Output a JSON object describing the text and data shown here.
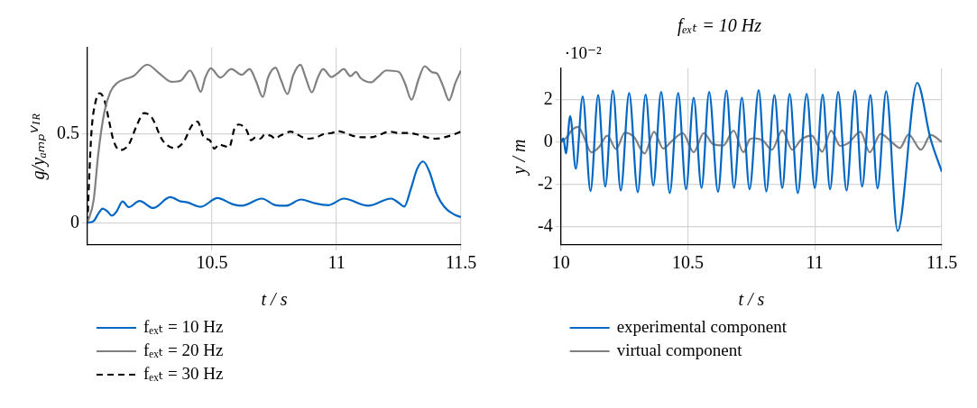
{
  "chart_data": [
    {
      "type": "line",
      "xlabel": "t / s",
      "ylabel": "g/yₐₘₚⱽᴵᴿ",
      "xlim": [
        10,
        11.5
      ],
      "xticks": [
        10.5,
        11,
        11.5
      ],
      "ylim": [
        -0.125,
        0.985
      ],
      "yticks": [
        0,
        0.5
      ],
      "grid": true,
      "legend": "bottom",
      "series": [
        {
          "name": "fₑₓₜ = 10 Hz",
          "color": "#0066c4",
          "x": [
            10.0,
            10.025,
            10.043,
            10.061,
            10.08,
            10.098,
            10.117,
            10.141,
            10.166,
            10.209,
            10.264,
            10.332,
            10.375,
            10.4,
            10.455,
            10.522,
            10.584,
            10.62,
            10.7,
            10.755,
            10.797,
            10.858,
            10.907,
            10.968,
            11.029,
            11.127,
            11.219,
            11.25,
            11.272,
            11.299,
            11.324,
            11.348,
            11.373,
            11.403,
            11.434,
            11.471,
            11.5
          ],
          "values": [
            0,
            0.01,
            0.05,
            0.08,
            0.064,
            0.04,
            0.064,
            0.12,
            0.088,
            0.123,
            0.083,
            0.144,
            0.12,
            0.115,
            0.09,
            0.139,
            0.104,
            0.096,
            0.136,
            0.099,
            0.096,
            0.131,
            0.112,
            0.099,
            0.136,
            0.096,
            0.136,
            0.112,
            0.091,
            0.192,
            0.304,
            0.345,
            0.288,
            0.16,
            0.088,
            0.048,
            0.032
          ]
        },
        {
          "name": "fₑₓₜ = 20 Hz",
          "color": "#808080",
          "x": [
            10.0,
            10.025,
            10.043,
            10.068,
            10.092,
            10.117,
            10.154,
            10.184,
            10.24,
            10.289,
            10.338,
            10.375,
            10.412,
            10.43,
            10.455,
            10.473,
            10.495,
            10.534,
            10.577,
            10.62,
            10.651,
            10.676,
            10.704,
            10.725,
            10.755,
            10.778,
            10.803,
            10.827,
            10.855,
            10.876,
            10.901,
            10.925,
            10.946,
            10.98,
            11.005,
            11.029,
            11.056,
            11.078,
            11.097,
            11.14,
            11.164,
            11.201,
            11.25,
            11.275,
            11.301,
            11.33,
            11.354,
            11.385,
            11.403,
            11.428,
            11.452,
            11.477,
            11.5
          ],
          "values": [
            0,
            0.13,
            0.385,
            0.625,
            0.737,
            0.785,
            0.81,
            0.825,
            0.89,
            0.84,
            0.793,
            0.8,
            0.857,
            0.817,
            0.737,
            0.817,
            0.869,
            0.817,
            0.865,
            0.833,
            0.865,
            0.8,
            0.708,
            0.817,
            0.873,
            0.8,
            0.724,
            0.833,
            0.889,
            0.817,
            0.734,
            0.817,
            0.865,
            0.82,
            0.841,
            0.865,
            0.825,
            0.849,
            0.814,
            0.79,
            0.817,
            0.857,
            0.849,
            0.785,
            0.692,
            0.809,
            0.881,
            0.846,
            0.841,
            0.769,
            0.689,
            0.785,
            0.857
          ]
        },
        {
          "name": "fₑₓₜ = 30 Hz",
          "color": "#000000",
          "line_style": "dashed",
          "x": [
            10.0,
            10.006,
            10.016,
            10.031,
            10.049,
            10.068,
            10.086,
            10.104,
            10.129,
            10.166,
            10.197,
            10.227,
            10.258,
            10.301,
            10.35,
            10.387,
            10.418,
            10.442,
            10.467,
            10.491,
            10.51,
            10.528,
            10.547,
            10.569,
            10.59,
            10.608,
            10.639,
            10.657,
            10.676,
            10.694,
            10.712,
            10.737,
            10.755,
            10.772,
            10.797,
            10.815,
            10.839,
            10.864,
            10.888,
            10.919,
            10.95,
            10.98,
            11.005,
            11.036,
            11.066,
            11.103,
            11.14,
            11.176,
            11.213,
            11.25,
            11.287,
            11.324,
            11.36,
            11.397,
            11.434,
            11.471,
            11.5
          ],
          "values": [
            0,
            0.224,
            0.513,
            0.673,
            0.729,
            0.689,
            0.577,
            0.465,
            0.409,
            0.441,
            0.545,
            0.617,
            0.593,
            0.465,
            0.42,
            0.457,
            0.545,
            0.569,
            0.481,
            0.465,
            0.417,
            0.441,
            0.433,
            0.425,
            0.529,
            0.553,
            0.521,
            0.465,
            0.481,
            0.473,
            0.497,
            0.489,
            0.473,
            0.489,
            0.505,
            0.513,
            0.5,
            0.481,
            0.473,
            0.481,
            0.5,
            0.505,
            0.516,
            0.505,
            0.489,
            0.481,
            0.481,
            0.497,
            0.513,
            0.505,
            0.505,
            0.497,
            0.481,
            0.473,
            0.481,
            0.497,
            0.513
          ]
        }
      ]
    },
    {
      "type": "line",
      "title": "fₑₓₜ = 10 Hz",
      "xlabel": "t / s",
      "ylabel": "y / m",
      "annotations": [
        "·10⁻²"
      ],
      "xlim": [
        10,
        11.5
      ],
      "xticks": [
        10,
        10.5,
        11,
        11.5
      ],
      "ylim": [
        -4.86,
        3.46
      ],
      "yticks": [
        -4,
        -2,
        0,
        2
      ],
      "grid": true,
      "legend": "bottom",
      "series": [
        {
          "name": "experimental component",
          "color": "#0066c4",
          "x": [
            10.0,
            10.01,
            10.02,
            10.037,
            10.059,
            10.086,
            10.117,
            10.147,
            10.175,
            10.205,
            10.236,
            10.269,
            10.303,
            10.334,
            10.364,
            10.395,
            10.429,
            10.462,
            10.493,
            10.523,
            10.554,
            10.584,
            10.619,
            10.652,
            10.682,
            10.713,
            10.743,
            10.779,
            10.809,
            10.841,
            10.872,
            10.901,
            10.933,
            10.968,
            11.0,
            11.031,
            11.06,
            11.092,
            11.125,
            11.158,
            11.186,
            11.219,
            11.247,
            11.281,
            11.326,
            11.403,
            11.455,
            11.5
          ],
          "values": [
            0,
            0.17,
            -0.55,
            1.22,
            -1.27,
            2.14,
            -2.32,
            2.2,
            -2.11,
            2.42,
            -2.29,
            2.3,
            -2.37,
            2.23,
            -2.05,
            2.35,
            -2.41,
            2.3,
            -2.23,
            2.08,
            -2.17,
            2.35,
            -2.35,
            2.42,
            -2.17,
            2.08,
            -2.23,
            2.44,
            -2.34,
            2.2,
            -2.17,
            2.26,
            -2.41,
            2.26,
            -2.17,
            2.23,
            -2.23,
            2.35,
            -2.29,
            2.42,
            -2.11,
            2.2,
            -2.19,
            2.38,
            -4.2,
            2.78,
            0.17,
            -1.41
          ]
        },
        {
          "name": "virtual component",
          "color": "#808080",
          "x": [
            10.0,
            10.01,
            10.028,
            10.046,
            10.068,
            10.089,
            10.12,
            10.15,
            10.183,
            10.218,
            10.252,
            10.288,
            10.33,
            10.367,
            10.403,
            10.438,
            10.48,
            10.523,
            10.563,
            10.599,
            10.64,
            10.68,
            10.719,
            10.743,
            10.76,
            10.797,
            10.831,
            10.872,
            10.911,
            10.947,
            10.988,
            11.029,
            11.064,
            11.1,
            11.131,
            11.18,
            11.216,
            11.259,
            11.308,
            11.335,
            11.369,
            11.418,
            11.457,
            11.5
          ],
          "values": [
            0,
            0.05,
            0.29,
            0.59,
            0.71,
            0.29,
            -0.49,
            -0.25,
            0.29,
            -0.34,
            0.43,
            0.23,
            -0.55,
            0.47,
            -0.31,
            0.05,
            0.41,
            -0.49,
            0.41,
            -0.1,
            -0.17,
            0.53,
            -0.49,
            0.11,
            0.17,
            0.05,
            -0.37,
            0.55,
            -0.37,
            0.11,
            0.29,
            -0.46,
            0.53,
            -0.19,
            -0.07,
            0.47,
            -0.49,
            0.38,
            -0.07,
            -0.29,
            0.35,
            -0.37,
            0.32,
            -0.01
          ]
        }
      ]
    }
  ]
}
